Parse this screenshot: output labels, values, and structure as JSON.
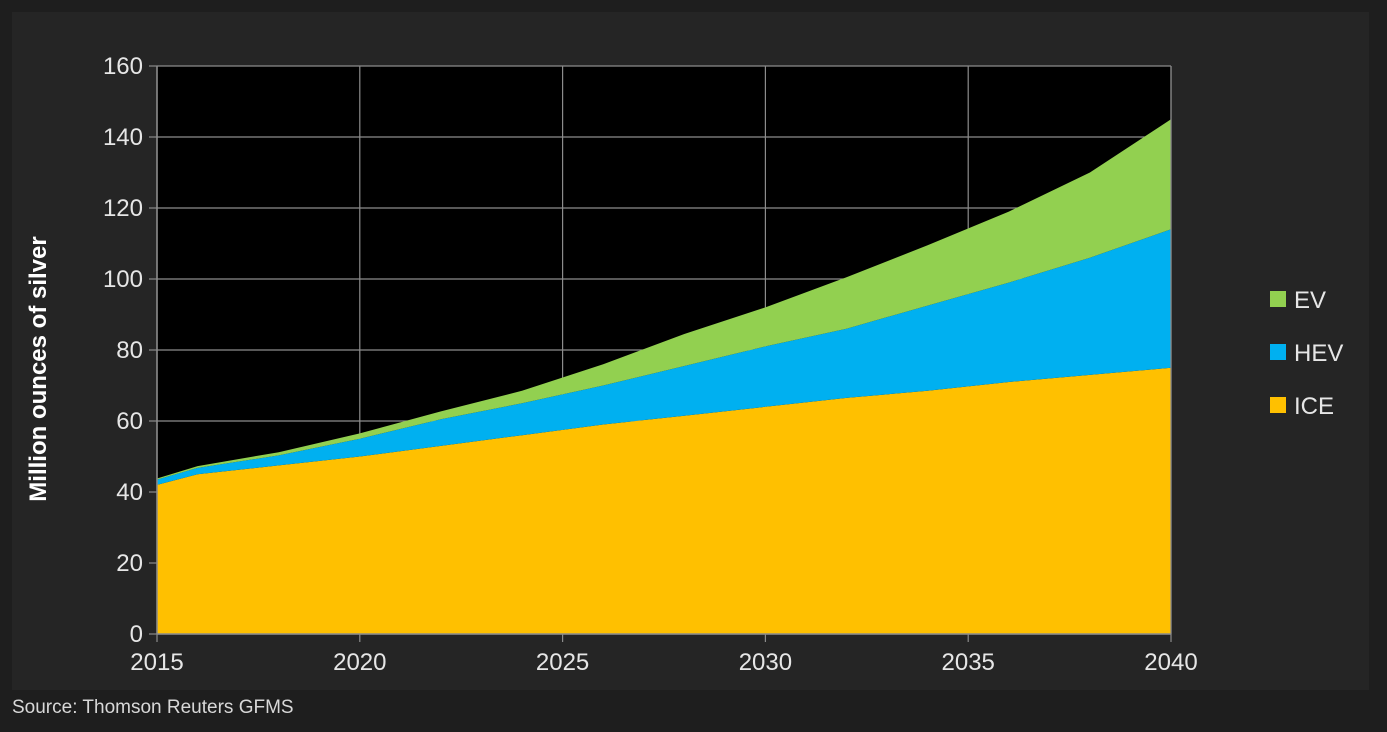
{
  "chart_data": {
    "type": "area",
    "stacked": true,
    "title": "",
    "xlabel": "",
    "ylabel": "Million ounces of silver",
    "x": [
      2015,
      2016,
      2018,
      2020,
      2022,
      2024,
      2026,
      2028,
      2030,
      2032,
      2034,
      2036,
      2038,
      2040
    ],
    "xlim": [
      2015,
      2040
    ],
    "ylim": [
      0,
      160
    ],
    "x_ticks": [
      2015,
      2020,
      2025,
      2030,
      2035,
      2040
    ],
    "y_ticks": [
      0,
      20,
      40,
      60,
      80,
      100,
      120,
      140,
      160
    ],
    "grid": true,
    "legend_position": "right",
    "series": [
      {
        "name": "ICE",
        "color": "#ffc000",
        "values": [
          42,
          45,
          47.5,
          50,
          53,
          56,
          59,
          61.5,
          64,
          66.5,
          68.5,
          71,
          73,
          75
        ]
      },
      {
        "name": "HEV",
        "color": "#00b0f0",
        "values": [
          1.5,
          1.8,
          2.8,
          5,
          7.5,
          9,
          11,
          14,
          17,
          19.5,
          24,
          28,
          33,
          39
        ]
      },
      {
        "name": "EV",
        "color": "#92d050",
        "values": [
          0.3,
          0.5,
          0.9,
          1.5,
          2.2,
          3.5,
          6,
          9,
          11,
          14.5,
          17,
          20,
          24,
          31
        ]
      }
    ],
    "legend_order": [
      "EV",
      "HEV",
      "ICE"
    ]
  },
  "source": "Source: Thomson Reuters GFMS"
}
